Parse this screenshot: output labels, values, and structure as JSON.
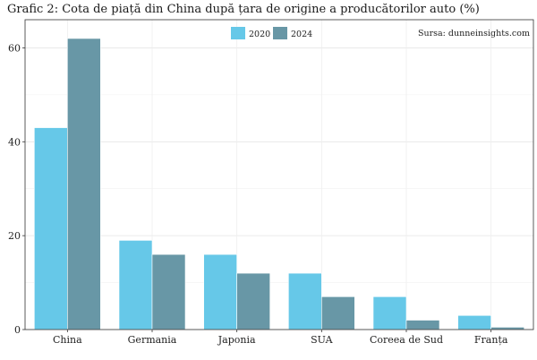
{
  "chart_data": {
    "type": "bar",
    "title": "Grafic 2: Cota de piață din China după țara de origine a producătorilor auto (%)",
    "source": "Sursa: dunneinsights.com",
    "categories": [
      "China",
      "Germania",
      "Japonia",
      "SUA",
      "Coreea de Sud",
      "Franța"
    ],
    "series": [
      {
        "name": "2020",
        "color": "#66c8e8",
        "values": [
          43,
          19,
          16,
          12,
          7,
          3
        ]
      },
      {
        "name": "2024",
        "color": "#6897a6",
        "values": [
          62,
          16,
          12,
          7,
          2,
          0.5
        ]
      }
    ],
    "ylim": [
      0,
      66
    ],
    "yticks": [
      0,
      20,
      40,
      60
    ],
    "grid": true,
    "legend": "top-center",
    "xlabel": "",
    "ylabel": ""
  }
}
